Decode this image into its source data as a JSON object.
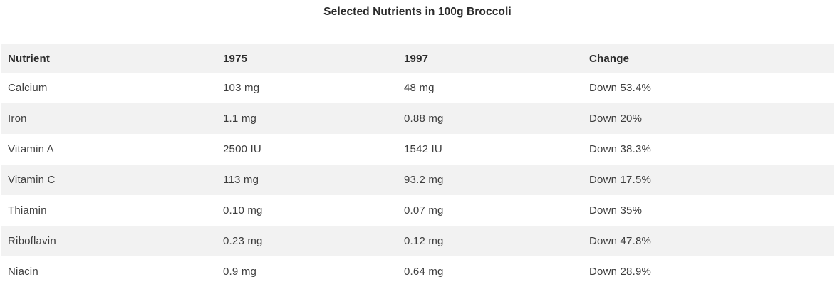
{
  "title": "Selected Nutrients in 100g Broccoli",
  "table": {
    "columns": [
      "Nutrient",
      "1975",
      "1997",
      "Change"
    ],
    "rows": [
      [
        "Calcium",
        "103 mg",
        "48 mg",
        "Down 53.4%"
      ],
      [
        "Iron",
        "1.1 mg",
        "0.88 mg",
        "Down 20%"
      ],
      [
        "Vitamin A",
        "2500 IU",
        "1542 IU",
        "Down 38.3%"
      ],
      [
        "Vitamin C",
        "113 mg",
        "93.2 mg",
        "Down 17.5%"
      ],
      [
        "Thiamin",
        "0.10 mg",
        "0.07 mg",
        "Down 35%"
      ],
      [
        "Riboflavin",
        "0.23 mg",
        "0.12 mg",
        "Down 47.8%"
      ],
      [
        "Niacin",
        "0.9 mg",
        "0.64 mg",
        "Down 28.9%"
      ]
    ]
  },
  "colors": {
    "stripe_background": "#f2f2f2",
    "header_text": "#2b2b2b",
    "body_text": "#3d3d3d",
    "page_background": "#ffffff"
  },
  "chart_data": {
    "type": "table",
    "title": "Selected Nutrients in 100g Broccoli",
    "columns": [
      "Nutrient",
      "1975",
      "1997",
      "Change"
    ],
    "rows": [
      {
        "nutrient": "Calcium",
        "v1975": "103 mg",
        "v1997": "48 mg",
        "change": "Down 53.4%"
      },
      {
        "nutrient": "Iron",
        "v1975": "1.1 mg",
        "v1997": "0.88 mg",
        "change": "Down 20%"
      },
      {
        "nutrient": "Vitamin A",
        "v1975": "2500 IU",
        "v1997": "1542 IU",
        "change": "Down 38.3%"
      },
      {
        "nutrient": "Vitamin C",
        "v1975": "113 mg",
        "v1997": "93.2 mg",
        "change": "Down 17.5%"
      },
      {
        "nutrient": "Thiamin",
        "v1975": "0.10 mg",
        "v1997": "0.07 mg",
        "change": "Down 35%"
      },
      {
        "nutrient": "Riboflavin",
        "v1975": "0.23 mg",
        "v1997": "0.12 mg",
        "change": "Down 47.8%"
      },
      {
        "nutrient": "Niacin",
        "v1975": "0.9 mg",
        "v1997": "0.64 mg",
        "change": "Down 28.9%"
      }
    ],
    "layout": {
      "striped": true,
      "stripe_rows": "even",
      "header_background": "#f2f2f2"
    }
  }
}
